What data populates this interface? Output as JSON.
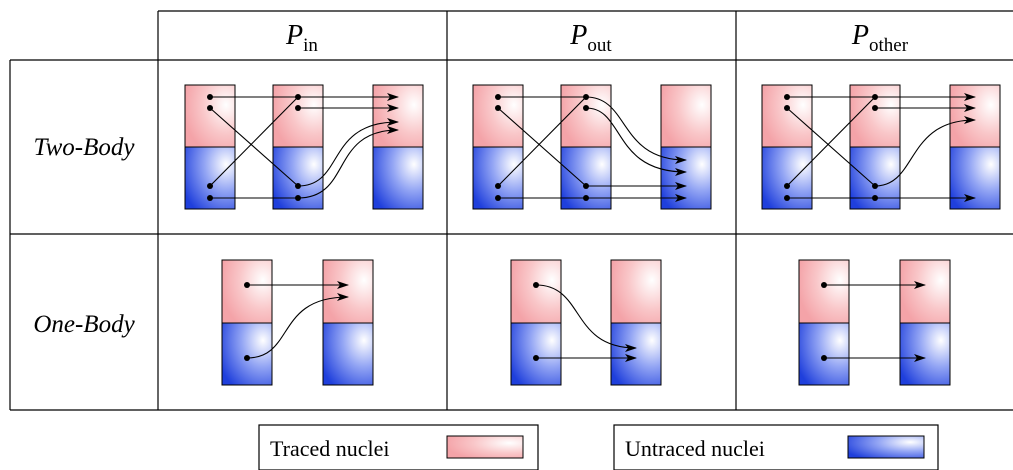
{
  "columns": [
    {
      "main": "P",
      "sub": "in"
    },
    {
      "main": "P",
      "sub": "out"
    },
    {
      "main": "P",
      "sub": "other"
    }
  ],
  "rows": [
    "Two-Body",
    "One-Body"
  ],
  "legend": {
    "traced": {
      "label": "Traced nuclei",
      "color": "#f7a9ae"
    },
    "untraced": {
      "label": "Untraced nuclei",
      "color": "#2f4fe6"
    }
  }
}
